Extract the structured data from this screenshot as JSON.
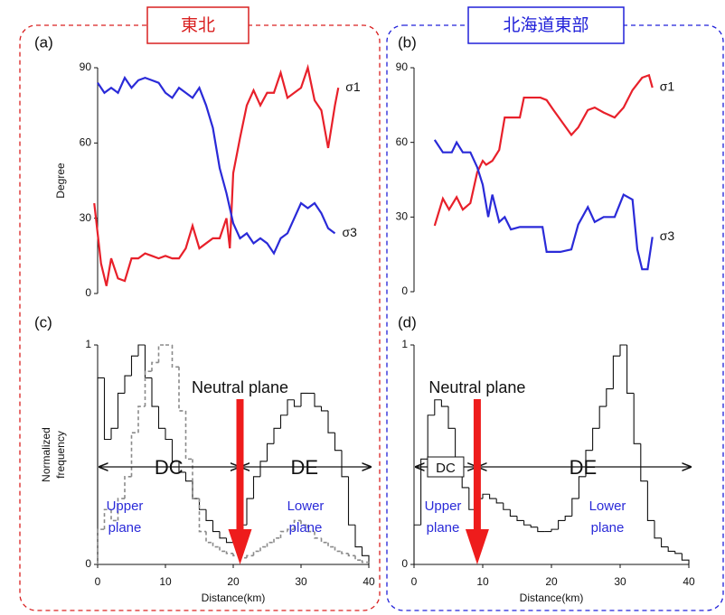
{
  "region_titles": [
    "東北",
    "北海道東部"
  ],
  "chart_data": [
    {
      "type": "line",
      "panel": "(a)",
      "ylabel": "Degree",
      "xlim": [
        0,
        40
      ],
      "ylim": [
        0,
        90
      ],
      "yticks": [
        0,
        30,
        60,
        90
      ],
      "series": [
        {
          "name": "σ1",
          "color": "#e8202a",
          "x": [
            -0.5,
            0.5,
            1.3,
            2,
            3,
            4,
            5,
            6,
            7,
            8,
            9,
            10,
            11,
            12,
            13,
            14,
            15,
            16,
            17,
            18,
            19,
            19.5,
            20,
            21,
            22,
            23,
            24,
            25,
            26,
            27,
            28,
            29,
            30,
            31,
            32,
            33,
            34,
            35,
            35.5
          ],
          "values": [
            36,
            12,
            3,
            14,
            6,
            5,
            14,
            14,
            16,
            15,
            14,
            15,
            14,
            14,
            18,
            27,
            18,
            20,
            22,
            22,
            30,
            18,
            48,
            62,
            75,
            81,
            75,
            80,
            80,
            88,
            78,
            80,
            82,
            90,
            77,
            73,
            58,
            75,
            82
          ]
        },
        {
          "name": "σ3",
          "color": "#2a2ad8",
          "x": [
            0,
            1,
            2,
            3,
            4,
            5,
            6,
            7,
            8,
            9,
            10,
            11,
            12,
            13,
            14,
            15,
            16,
            17,
            18,
            19,
            20,
            21,
            22,
            23,
            24,
            25,
            26,
            27,
            28,
            29,
            30,
            31,
            32,
            33,
            34,
            35
          ],
          "values": [
            84,
            80,
            82,
            80,
            86,
            82,
            85,
            86,
            85,
            84,
            80,
            78,
            82,
            80,
            78,
            82,
            75,
            66,
            50,
            40,
            28,
            22,
            24,
            20,
            22,
            20,
            16,
            22,
            24,
            30,
            36,
            34,
            36,
            32,
            26,
            24
          ]
        }
      ]
    },
    {
      "type": "line",
      "panel": "(b)",
      "xlim": [
        0,
        40
      ],
      "ylim": [
        0,
        90
      ],
      "yticks": [
        0,
        30,
        60,
        90
      ],
      "series": [
        {
          "name": "σ1",
          "color": "#e8202a",
          "x": [
            3.0,
            4.2,
            5.1,
            6.2,
            7.1,
            8.2,
            9.2,
            10,
            10.5,
            11.4,
            12.4,
            13.2,
            15.4,
            16,
            18.4,
            19.3,
            20.3,
            21.6,
            22.9,
            23.9,
            25.3,
            26.3,
            27.6,
            29.2,
            30.5,
            31.8,
            33.2,
            34.2,
            34.7
          ],
          "values": [
            26.5,
            37.4,
            33,
            38,
            33,
            35.6,
            48,
            52.6,
            51,
            52.6,
            57,
            70,
            70,
            78,
            78,
            77,
            73,
            68,
            63,
            66,
            73,
            74,
            72,
            70,
            74,
            81,
            86,
            87,
            82
          ]
        },
        {
          "name": "σ3",
          "color": "#2a2ad8",
          "x": [
            3.0,
            4.2,
            5.5,
            6.2,
            7.1,
            8.2,
            9.2,
            10,
            10.8,
            11.4,
            12.4,
            13.2,
            14.1,
            15.4,
            17.4,
            18.7,
            19.3,
            21.3,
            22.9,
            23.9,
            25.3,
            26.3,
            27.6,
            29.2,
            30.5,
            31.8,
            32.5,
            33.2,
            34,
            34.7
          ],
          "values": [
            61,
            56,
            56,
            60,
            56,
            56,
            50,
            43,
            30,
            39,
            28,
            30,
            25,
            26,
            26,
            26,
            16,
            16,
            17,
            27,
            34,
            28,
            30,
            30,
            39,
            37,
            17,
            9,
            9,
            22
          ]
        }
      ]
    },
    {
      "type": "histogram",
      "panel": "(c)",
      "ylabel": [
        "Normalized",
        "frequency"
      ],
      "xlabel": "Distance(km)",
      "xlim": [
        0,
        40
      ],
      "xticks": [
        0,
        10,
        20,
        30,
        40
      ],
      "ylim": [
        0,
        1
      ],
      "yticks": [
        0,
        1
      ],
      "bins": [
        0,
        1,
        2,
        3,
        4,
        5,
        6,
        7,
        8,
        9,
        10,
        11,
        12,
        13,
        14,
        15,
        16,
        17,
        18,
        19,
        20,
        21,
        22,
        23,
        24,
        25,
        26,
        27,
        28,
        29,
        30,
        31,
        32,
        33,
        34,
        35,
        36,
        37,
        38,
        39,
        40
      ],
      "series": [
        {
          "color": "#111111",
          "dashed": false,
          "values": [
            0.85,
            0.57,
            0.62,
            0.78,
            0.86,
            0.95,
            1.0,
            0.85,
            0.72,
            0.62,
            0.57,
            0.47,
            0.42,
            0.38,
            0.3,
            0.25,
            0.2,
            0.15,
            0.12,
            0.1,
            0.12,
            0.18,
            0.3,
            0.4,
            0.47,
            0.55,
            0.62,
            0.68,
            0.75,
            0.72,
            0.78,
            0.78,
            0.72,
            0.7,
            0.6,
            0.52,
            0.4,
            0.18,
            0.08,
            0.04
          ]
        },
        {
          "color": "#8a8a8a",
          "dashed": true,
          "values": [
            0.16,
            0.25,
            0.2,
            0.3,
            0.4,
            0.6,
            0.72,
            0.88,
            0.92,
            1.0,
            1.0,
            0.9,
            0.7,
            0.48,
            0.3,
            0.15,
            0.1,
            0.08,
            0.06,
            0.05,
            0.04,
            0.03,
            0.04,
            0.06,
            0.08,
            0.1,
            0.12,
            0.15,
            0.16,
            0.2,
            0.18,
            0.15,
            0.12,
            0.1,
            0.08,
            0.06,
            0.05,
            0.04,
            0.02,
            0.01
          ]
        }
      ],
      "neutral_plane": 21,
      "annotations": {
        "neutral": "Neutral plane",
        "left": "DC",
        "right": "DE",
        "upper": [
          "Upper",
          "plane"
        ],
        "lower": [
          "Lower",
          "plane"
        ]
      }
    },
    {
      "type": "histogram",
      "panel": "(d)",
      "xlabel": "Distance(km)",
      "xlim": [
        0,
        40
      ],
      "xticks": [
        0,
        10,
        20,
        30,
        40
      ],
      "ylim": [
        0,
        1
      ],
      "yticks": [
        0,
        1
      ],
      "bins": [
        0,
        1,
        2,
        3,
        4,
        5,
        6,
        7,
        8,
        9,
        10,
        11,
        12,
        13,
        14,
        15,
        16,
        17,
        18,
        19,
        20,
        21,
        22,
        23,
        24,
        25,
        26,
        27,
        28,
        29,
        30,
        31,
        32,
        33,
        34,
        35,
        36,
        37,
        38,
        39,
        40
      ],
      "series": [
        {
          "color": "#111111",
          "dashed": false,
          "values": [
            0.18,
            0.48,
            0.68,
            0.75,
            0.72,
            0.62,
            0.45,
            0.35,
            0.25,
            0.3,
            0.32,
            0.3,
            0.28,
            0.25,
            0.22,
            0.2,
            0.18,
            0.17,
            0.15,
            0.15,
            0.16,
            0.2,
            0.22,
            0.3,
            0.4,
            0.52,
            0.62,
            0.72,
            0.8,
            0.95,
            1.0,
            0.78,
            0.55,
            0.38,
            0.2,
            0.12,
            0.08,
            0.06,
            0.05,
            0.02
          ]
        }
      ],
      "neutral_plane": 9.2,
      "annotations": {
        "neutral": "Neutral plane",
        "left": "DC",
        "right": "DE",
        "upper": [
          "Upper",
          "plane"
        ],
        "lower": [
          "Lower",
          "plane"
        ]
      }
    }
  ]
}
